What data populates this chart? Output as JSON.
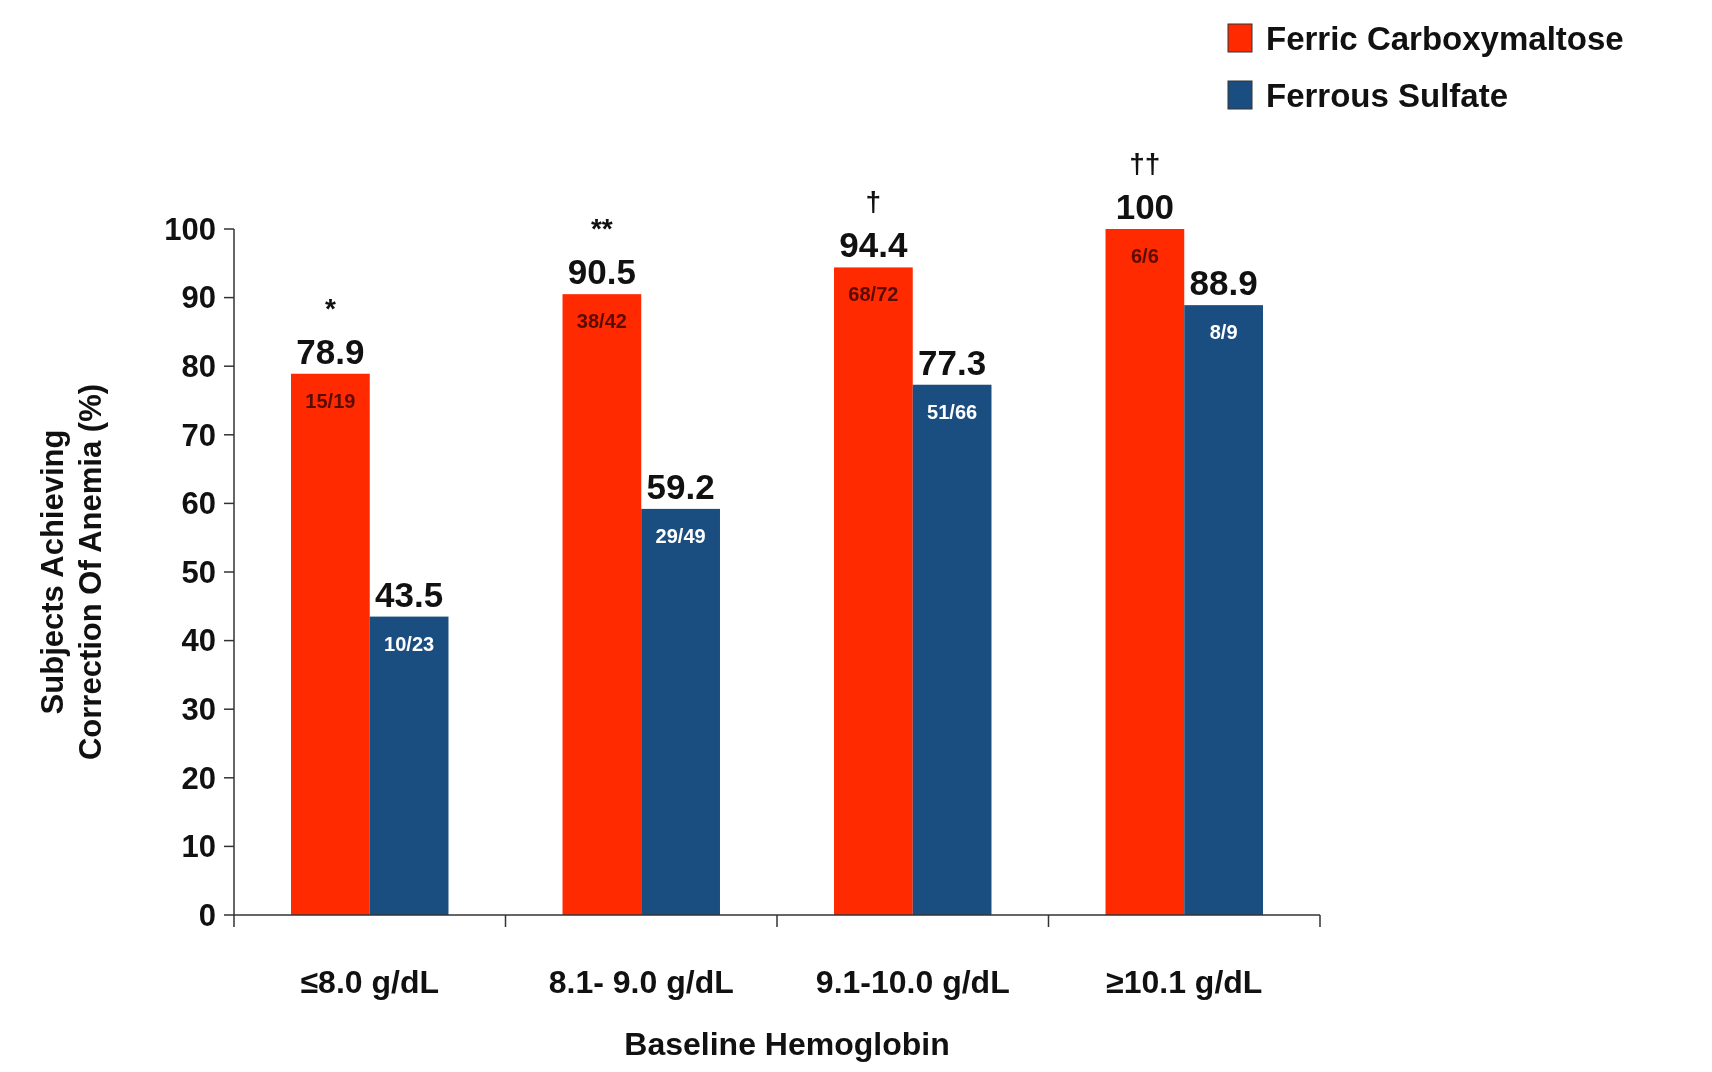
{
  "chart_data": {
    "type": "bar",
    "xlabel": "Baseline Hemoglobin",
    "ylabel": "Subjects Achieving\nCorrection Of Anemia (%)",
    "categories": [
      "≤8.0 g/dL",
      "8.1- 9.0 g/dL",
      "9.1-10.0 g/dL",
      "≥10.1 g/dL"
    ],
    "series": [
      {
        "name": "Ferric Carboxymaltose",
        "color": "#ff2a00",
        "values": [
          78.9,
          90.5,
          94.4,
          100
        ]
      },
      {
        "name": "Ferrous Sulfate",
        "color": "#1a4e80",
        "values": [
          43.5,
          59.2,
          77.3,
          88.9
        ]
      }
    ],
    "ylim": [
      0,
      100
    ],
    "yticks": [
      0,
      10,
      20,
      30,
      40,
      50,
      60,
      70,
      80,
      90,
      100
    ],
    "data_labels": true,
    "legend": "top right",
    "grid": false,
    "annotations": [
      {
        "text": "15/19",
        "x": "≤8.0 g/dL",
        "y": 78.9
      },
      {
        "text": "10/23",
        "x": "≤8.0 g/dL",
        "y": 43.5
      },
      {
        "text": "38/42",
        "x": "8.1- 9.0 g/dL",
        "y": 90.5
      },
      {
        "text": "29/49",
        "x": "8.1- 9.0 g/dL",
        "y": 59.2
      },
      {
        "text": "68/72",
        "x": "9.1-10.0 g/dL",
        "y": 94.4
      },
      {
        "text": "51/66",
        "x": "9.1-10.0 g/dL",
        "y": 77.3
      },
      {
        "text": "6/6",
        "x": "≥10.1 g/dL",
        "y": 100
      },
      {
        "text": "8/9",
        "x": "≥10.1 g/dL",
        "y": 88.9
      },
      {
        "text": "*",
        "x": "≤8.0 g/dL",
        "y": 78.9
      },
      {
        "text": "**",
        "x": "8.1- 9.0 g/dL",
        "y": 90.5
      },
      {
        "text": "†",
        "x": "9.1-10.0 g/dL",
        "y": 94.4
      },
      {
        "text": "††",
        "x": "≥10.1 g/dL",
        "y": 100
      }
    ]
  }
}
